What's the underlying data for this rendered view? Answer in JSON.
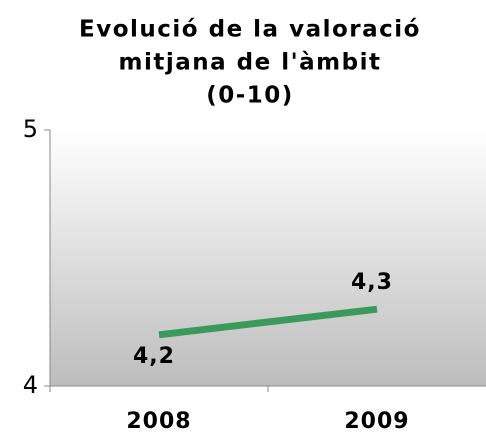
{
  "chart_data": {
    "type": "line",
    "title": [
      "Evolució de la valoració",
      "mitjana de l'àmbit",
      "(0-10)"
    ],
    "categories": [
      "2008",
      "2009"
    ],
    "series": [
      {
        "name": null,
        "color": "#3a9a5c",
        "values": [
          4.2,
          4.3
        ],
        "value_labels": [
          "4,2",
          "4,3"
        ]
      }
    ],
    "ylim": [
      4,
      5
    ],
    "yticks": [
      4,
      5
    ]
  }
}
